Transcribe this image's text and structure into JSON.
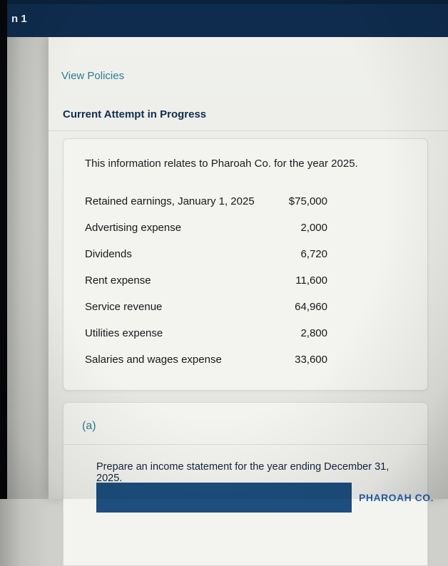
{
  "top_bar": {
    "question_label": "n 1"
  },
  "links": {
    "view_policies": "View Policies"
  },
  "status": {
    "current_attempt": "Current Attempt in Progress"
  },
  "info_card": {
    "intro": "This information relates to Pharoah Co. for the year 2025.",
    "rows": [
      {
        "label": "Retained earnings, January 1, 2025",
        "value": "$75,000"
      },
      {
        "label": "Advertising expense",
        "value": "2,000"
      },
      {
        "label": "Dividends",
        "value": "6,720"
      },
      {
        "label": "Rent expense",
        "value": "11,600"
      },
      {
        "label": "Service revenue",
        "value": "64,960"
      },
      {
        "label": "Utilities expense",
        "value": "2,800"
      },
      {
        "label": "Salaries and wages expense",
        "value": "33,600"
      }
    ]
  },
  "part_a": {
    "label": "(a)",
    "instruction": "Prepare an income statement for the year ending December 31, 2025.",
    "partial_heading": "PHAROAH CO."
  },
  "colors": {
    "navy_header": "#0f2c4e",
    "teal_link": "#2b7d91",
    "answer_bar_blue": "#1d4e7e",
    "heading_blue": "#2c5fb0"
  }
}
